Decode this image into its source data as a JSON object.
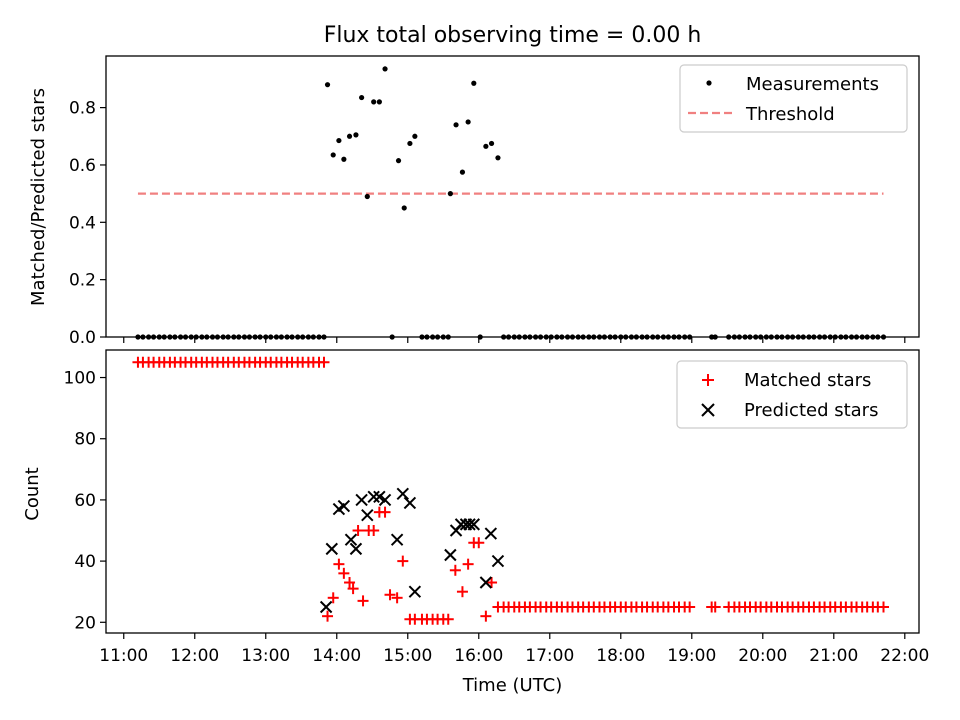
{
  "chart_data": [
    {
      "type": "scatter",
      "title": "Flux total observing time = 0.00 h",
      "xlabel": "",
      "ylabel": "Matched/Predicted stars",
      "xlim": [
        10.75,
        22.2
      ],
      "ylim": [
        0.0,
        0.98
      ],
      "yticks": [
        0.0,
        0.2,
        0.4,
        0.6,
        0.8
      ],
      "ytick_labels": [
        "0.0",
        "0.2",
        "0.4",
        "0.6",
        "0.8"
      ],
      "xticks": [
        11,
        12,
        13,
        14,
        15,
        16,
        17,
        18,
        19,
        20,
        21,
        22
      ],
      "legend": [
        "Measurements",
        "Threshold"
      ],
      "legend_position": "top-right",
      "threshold": {
        "name": "Threshold",
        "value": 0.5,
        "x_range": [
          11.2,
          21.7
        ],
        "color": "#f08080"
      },
      "measurements_zero_x": [
        11.2,
        11.27,
        11.35,
        11.42,
        11.5,
        11.57,
        11.65,
        11.72,
        11.8,
        11.87,
        11.95,
        12.02,
        12.1,
        12.17,
        12.25,
        12.32,
        12.4,
        12.47,
        12.55,
        12.62,
        12.7,
        12.77,
        12.85,
        12.92,
        13.0,
        13.07,
        13.15,
        13.22,
        13.3,
        13.37,
        13.45,
        13.52,
        13.6,
        13.67,
        13.75,
        13.82,
        14.78,
        15.2,
        15.27,
        15.35,
        15.42,
        15.5,
        15.57,
        16.02,
        16.35,
        16.42,
        16.5,
        16.57,
        16.65,
        16.72,
        16.8,
        16.87,
        16.95,
        17.02,
        17.1,
        17.17,
        17.25,
        17.32,
        17.4,
        17.47,
        17.55,
        17.62,
        17.7,
        17.77,
        17.85,
        17.92,
        18.0,
        18.07,
        18.15,
        18.22,
        18.3,
        18.37,
        18.45,
        18.52,
        18.6,
        18.67,
        18.75,
        18.82,
        18.9,
        18.97,
        19.28,
        19.33,
        19.52,
        19.6,
        19.67,
        19.75,
        19.82,
        19.9,
        19.97,
        20.05,
        20.12,
        20.2,
        20.27,
        20.35,
        20.42,
        20.5,
        20.57,
        20.65,
        20.72,
        20.8,
        20.87,
        20.95,
        21.02,
        21.1,
        21.17,
        21.25,
        21.32,
        21.4,
        21.47,
        21.55,
        21.62,
        21.7
      ],
      "measurements_nonzero": {
        "x": [
          13.87,
          13.95,
          14.03,
          14.1,
          14.18,
          14.27,
          14.35,
          14.43,
          14.52,
          14.6,
          14.68,
          14.87,
          14.95,
          15.03,
          15.1,
          15.6,
          15.68,
          15.77,
          15.85,
          15.93,
          16.1,
          16.18,
          16.27
        ],
        "y": [
          0.88,
          0.635,
          0.685,
          0.62,
          0.7,
          0.705,
          0.835,
          0.49,
          0.82,
          0.82,
          0.935,
          0.615,
          0.45,
          0.675,
          0.7,
          0.5,
          0.74,
          0.575,
          0.75,
          0.885,
          0.665,
          0.675,
          0.625
        ]
      }
    },
    {
      "type": "scatter",
      "title": "",
      "xlabel": "Time (UTC)",
      "ylabel": "Count",
      "xlim": [
        10.75,
        22.2
      ],
      "ylim": [
        16.5,
        109
      ],
      "yticks": [
        20,
        40,
        60,
        80,
        100
      ],
      "ytick_labels": [
        "20",
        "40",
        "60",
        "80",
        "100"
      ],
      "xticks": [
        11,
        12,
        13,
        14,
        15,
        16,
        17,
        18,
        19,
        20,
        21,
        22
      ],
      "xtick_labels": [
        "11:00",
        "12:00",
        "13:00",
        "14:00",
        "15:00",
        "16:00",
        "17:00",
        "18:00",
        "19:00",
        "20:00",
        "21:00",
        "22:00"
      ],
      "legend": [
        "Matched stars",
        "Predicted stars"
      ],
      "legend_position": "top-right",
      "series": [
        {
          "name": "Matched stars",
          "marker": "+",
          "color": "#ff0000",
          "x": [
            11.2,
            11.27,
            11.35,
            11.42,
            11.5,
            11.57,
            11.65,
            11.72,
            11.8,
            11.87,
            11.95,
            12.02,
            12.1,
            12.17,
            12.25,
            12.32,
            12.4,
            12.47,
            12.55,
            12.62,
            12.7,
            12.77,
            12.85,
            12.92,
            13.0,
            13.07,
            13.15,
            13.22,
            13.3,
            13.37,
            13.45,
            13.52,
            13.6,
            13.67,
            13.75,
            13.82,
            13.87,
            13.95,
            14.03,
            14.1,
            14.18,
            14.23,
            14.3,
            14.37,
            14.45,
            14.52,
            14.6,
            14.68,
            14.75,
            14.85,
            14.93,
            15.03,
            15.1,
            15.2,
            15.27,
            15.35,
            15.42,
            15.5,
            15.57,
            15.67,
            15.77,
            15.85,
            15.93,
            16.0,
            16.1,
            16.18,
            16.27,
            16.35,
            16.42,
            16.5,
            16.57,
            16.65,
            16.72,
            16.8,
            16.87,
            16.95,
            17.02,
            17.1,
            17.17,
            17.25,
            17.32,
            17.4,
            17.47,
            17.55,
            17.62,
            17.7,
            17.77,
            17.85,
            17.92,
            18.0,
            18.07,
            18.15,
            18.22,
            18.3,
            18.37,
            18.45,
            18.52,
            18.6,
            18.67,
            18.75,
            18.82,
            18.9,
            18.97,
            19.28,
            19.33,
            19.52,
            19.6,
            19.67,
            19.75,
            19.82,
            19.9,
            19.97,
            20.05,
            20.12,
            20.2,
            20.27,
            20.35,
            20.42,
            20.5,
            20.57,
            20.65,
            20.72,
            20.8,
            20.87,
            20.95,
            21.02,
            21.1,
            21.17,
            21.25,
            21.32,
            21.4,
            21.47,
            21.55,
            21.62,
            21.7
          ],
          "y": [
            105,
            105,
            105,
            105,
            105,
            105,
            105,
            105,
            105,
            105,
            105,
            105,
            105,
            105,
            105,
            105,
            105,
            105,
            105,
            105,
            105,
            105,
            105,
            105,
            105,
            105,
            105,
            105,
            105,
            105,
            105,
            105,
            105,
            105,
            105,
            105,
            22,
            28,
            39,
            36,
            33,
            31,
            50,
            27,
            50,
            50,
            56,
            56,
            29,
            28,
            40,
            21,
            21,
            21,
            21,
            21,
            21,
            21,
            21,
            37,
            30,
            39,
            46,
            46,
            22,
            33,
            25,
            25,
            25,
            25,
            25,
            25,
            25,
            25,
            25,
            25,
            25,
            25,
            25,
            25,
            25,
            25,
            25,
            25,
            25,
            25,
            25,
            25,
            25,
            25,
            25,
            25,
            25,
            25,
            25,
            25,
            25,
            25,
            25,
            25,
            25,
            25,
            25,
            25,
            25,
            25,
            25,
            25,
            25,
            25,
            25,
            25,
            25,
            25,
            25,
            25,
            25,
            25,
            25,
            25,
            25,
            25,
            25,
            25,
            25,
            25,
            25,
            25,
            25,
            25,
            25,
            25,
            25,
            25,
            25
          ]
        },
        {
          "name": "Predicted stars",
          "marker": "x",
          "color": "#000000",
          "x": [
            13.85,
            13.93,
            14.03,
            14.1,
            14.2,
            14.27,
            14.35,
            14.43,
            14.52,
            14.6,
            14.68,
            14.85,
            14.93,
            15.03,
            15.1,
            15.6,
            15.68,
            15.75,
            15.82,
            15.87,
            15.93,
            16.1,
            16.17,
            16.27
          ],
          "y": [
            25,
            44,
            57,
            58,
            47,
            44,
            60,
            55,
            61,
            61,
            60,
            47,
            62,
            59,
            30,
            42,
            50,
            52,
            52,
            52,
            52,
            33,
            49,
            40
          ]
        }
      ]
    }
  ]
}
